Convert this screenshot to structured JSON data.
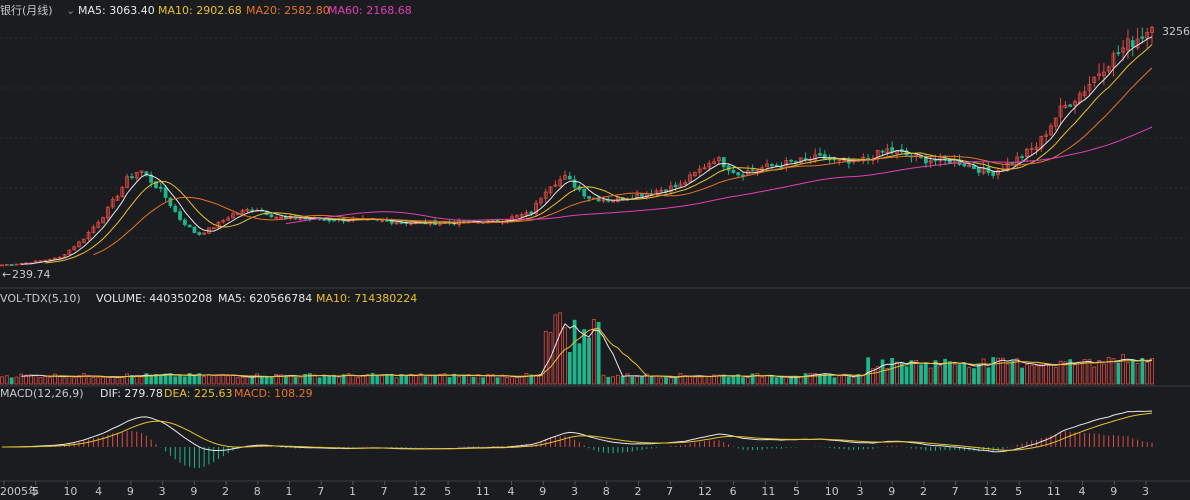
{
  "main": {
    "name_prefix": "银行(月线)",
    "ma5": {
      "label": "MA5: 3063.40",
      "color": "#e8e8e8"
    },
    "ma10": {
      "label": "MA10: 2902.68",
      "color": "#e8c12a"
    },
    "ma20": {
      "label": "MA20: 2582.80",
      "color": "#e8722a"
    },
    "ma60": {
      "label": "MA60: 2168.68",
      "color": "#e23fb4"
    },
    "high_marker": "3256",
    "low_marker": "239.74"
  },
  "volume": {
    "name": "VOL-TDX(5,10)",
    "volume_label": "VOLUME: 440350208",
    "ma5_label": "MA5: 620566784",
    "ma10_label": "MA10: 714380224",
    "ma10_color": "#e8c12a"
  },
  "macd": {
    "name": "MACD(12,26,9)",
    "dif_label": "DIF: 279.78",
    "dea_label": "DEA: 225.63",
    "macd_label": "MACD: 108.29",
    "dea_color": "#e8c12a",
    "macd_color": "#e8722a"
  },
  "x_axis": {
    "labels": [
      "2005年",
      "5",
      "10",
      "4",
      "9",
      "3",
      "9",
      "2",
      "8",
      "1",
      "7",
      "1",
      "7",
      "12",
      "5",
      "11",
      "4",
      "9",
      "3",
      "8",
      "2",
      "7",
      "12",
      "6",
      "11",
      "5",
      "10",
      "3",
      "9",
      "2",
      "7",
      "12",
      "5",
      "11",
      "4",
      "9",
      "3"
    ]
  },
  "chart_data": {
    "type": "candlestick",
    "period": "monthly",
    "price_range": [
      239.74,
      3256
    ],
    "series_anchors": [
      {
        "t": 0,
        "v": 240
      },
      {
        "t": 0.02,
        "v": 260
      },
      {
        "t": 0.05,
        "v": 330
      },
      {
        "t": 0.07,
        "v": 560
      },
      {
        "t": 0.09,
        "v": 900
      },
      {
        "t": 0.11,
        "v": 1350
      },
      {
        "t": 0.12,
        "v": 1450
      },
      {
        "t": 0.14,
        "v": 1150
      },
      {
        "t": 0.155,
        "v": 820
      },
      {
        "t": 0.17,
        "v": 620
      },
      {
        "t": 0.185,
        "v": 730
      },
      {
        "t": 0.2,
        "v": 880
      },
      {
        "t": 0.22,
        "v": 960
      },
      {
        "t": 0.24,
        "v": 840
      },
      {
        "t": 0.28,
        "v": 820
      },
      {
        "t": 0.33,
        "v": 800
      },
      {
        "t": 0.36,
        "v": 770
      },
      {
        "t": 0.4,
        "v": 780
      },
      {
        "t": 0.43,
        "v": 790
      },
      {
        "t": 0.46,
        "v": 900
      },
      {
        "t": 0.475,
        "v": 1250
      },
      {
        "t": 0.49,
        "v": 1350
      },
      {
        "t": 0.51,
        "v": 1100
      },
      {
        "t": 0.53,
        "v": 1060
      },
      {
        "t": 0.56,
        "v": 1150
      },
      {
        "t": 0.59,
        "v": 1250
      },
      {
        "t": 0.62,
        "v": 1600
      },
      {
        "t": 0.64,
        "v": 1400
      },
      {
        "t": 0.67,
        "v": 1500
      },
      {
        "t": 0.71,
        "v": 1600
      },
      {
        "t": 0.74,
        "v": 1520
      },
      {
        "t": 0.77,
        "v": 1700
      },
      {
        "t": 0.8,
        "v": 1580
      },
      {
        "t": 0.83,
        "v": 1560
      },
      {
        "t": 0.86,
        "v": 1400
      },
      {
        "t": 0.88,
        "v": 1560
      },
      {
        "t": 0.9,
        "v": 1750
      },
      {
        "t": 0.92,
        "v": 2200
      },
      {
        "t": 0.94,
        "v": 2450
      },
      {
        "t": 0.96,
        "v": 2800
      },
      {
        "t": 0.98,
        "v": 3050
      },
      {
        "t": 1.0,
        "v": 3256
      }
    ]
  }
}
